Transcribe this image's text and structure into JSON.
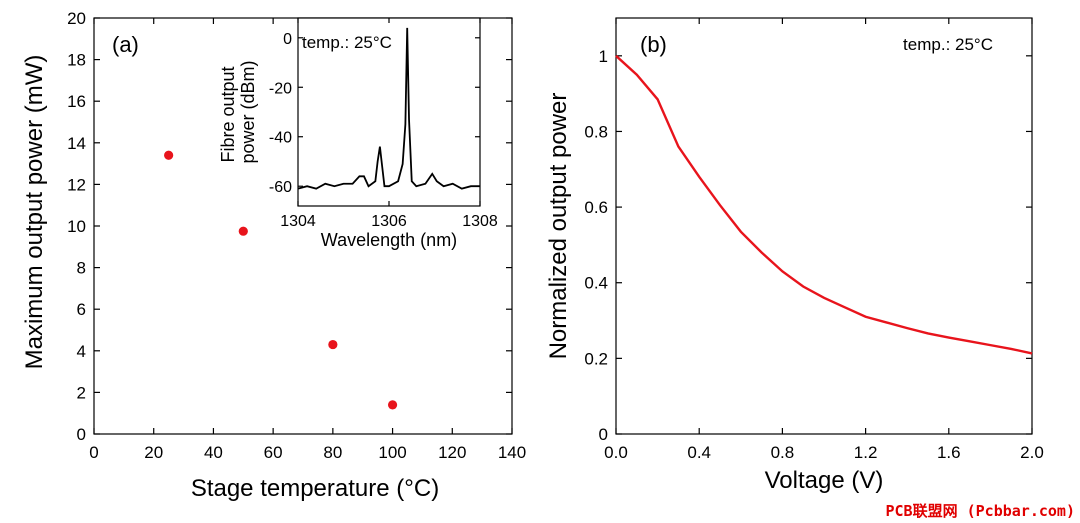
{
  "chart_data": [
    {
      "panel": "a",
      "type": "scatter",
      "label": "(a)",
      "xlabel": "Stage temperature (°C)",
      "ylabel": "Maximum output power (mW)",
      "xlim": [
        0,
        140
      ],
      "ylim": [
        0,
        20
      ],
      "xticks": [
        0,
        20,
        40,
        60,
        80,
        100,
        120,
        140
      ],
      "yticks": [
        0,
        2,
        4,
        6,
        8,
        10,
        12,
        14,
        16,
        18,
        20
      ],
      "x": [
        25,
        50,
        80,
        100
      ],
      "y": [
        13.4,
        9.75,
        4.3,
        1.4
      ],
      "color": "#e8141c"
    },
    {
      "panel": "a-inset",
      "type": "line",
      "annotation": "temp.: 25°C",
      "xlabel": "Wavelength (nm)",
      "ylabel": "Fibre output power (dBm)",
      "xlim": [
        1304,
        1308
      ],
      "ylim": [
        -68,
        8
      ],
      "xticks": [
        1304,
        1306,
        1308
      ],
      "yticks": [
        0,
        -20,
        -40,
        -60
      ],
      "x": [
        1304.0,
        1304.2,
        1304.4,
        1304.6,
        1304.8,
        1305.0,
        1305.2,
        1305.35,
        1305.45,
        1305.55,
        1305.7,
        1305.75,
        1305.8,
        1305.85,
        1305.9,
        1306.0,
        1306.2,
        1306.3,
        1306.36,
        1306.4,
        1306.44,
        1306.5,
        1306.6,
        1306.8,
        1306.95,
        1307.05,
        1307.2,
        1307.4,
        1307.6,
        1307.8,
        1308.0
      ],
      "y": [
        -61,
        -60,
        -61,
        -59,
        -60,
        -59,
        -59,
        -56,
        -56,
        -60,
        -58,
        -50,
        -44,
        -52,
        -60,
        -60,
        -58,
        -51,
        -35,
        4,
        -33,
        -58,
        -60,
        -59,
        -55,
        -58,
        -60,
        -59,
        -61,
        -60,
        -60
      ],
      "color": "#000000"
    },
    {
      "panel": "b",
      "type": "line",
      "label": "(b)",
      "annotation": "temp.: 25°C",
      "xlabel": "Voltage (V)",
      "ylabel": "Normalized output power",
      "xlim": [
        0,
        2.0
      ],
      "ylim": [
        0,
        1.1
      ],
      "xticks": [
        0.0,
        0.4,
        0.8,
        1.2,
        1.6,
        2.0
      ],
      "yticks": [
        0,
        0.2,
        0.4,
        0.6,
        0.8,
        1
      ],
      "x": [
        0.0,
        0.1,
        0.2,
        0.3,
        0.4,
        0.5,
        0.6,
        0.7,
        0.8,
        0.9,
        1.0,
        1.1,
        1.2,
        1.3,
        1.4,
        1.5,
        1.6,
        1.7,
        1.8,
        1.9,
        2.0
      ],
      "y": [
        1.0,
        0.95,
        0.885,
        0.76,
        0.68,
        0.605,
        0.535,
        0.48,
        0.43,
        0.39,
        0.36,
        0.335,
        0.31,
        0.295,
        0.28,
        0.266,
        0.255,
        0.245,
        0.235,
        0.225,
        0.213
      ],
      "color": "#e8141c"
    }
  ],
  "watermark": "PCB联盟网 (Pcbbar.com)"
}
